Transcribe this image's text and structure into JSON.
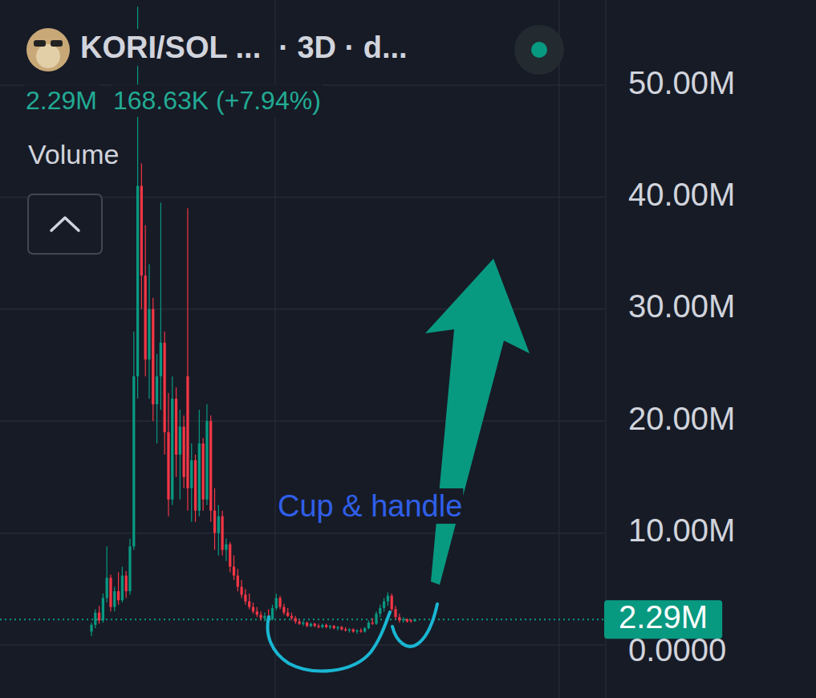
{
  "header": {
    "title": "KORI/SOL ...",
    "interval": "· 3D · d...",
    "price": "2.29M",
    "change": "168.63K (+7.94%)",
    "indicator": "Volume"
  },
  "chart_data": {
    "type": "candlestick",
    "ohlc": [
      [
        1.2,
        2.0,
        0.8,
        1.8
      ],
      [
        1.8,
        3.2,
        1.5,
        2.9
      ],
      [
        2.9,
        3.5,
        1.9,
        2.2
      ],
      [
        2.2,
        4.6,
        2.0,
        4.2
      ],
      [
        4.2,
        8.8,
        3.8,
        6.0
      ],
      [
        6.0,
        6.3,
        3.0,
        3.4
      ],
      [
        3.4,
        5.2,
        3.0,
        4.8
      ],
      [
        4.8,
        6.5,
        3.6,
        4.0
      ],
      [
        4.0,
        7.0,
        3.8,
        6.2
      ],
      [
        6.2,
        6.6,
        4.2,
        4.8
      ],
      [
        4.8,
        9.5,
        4.5,
        8.8
      ],
      [
        8.8,
        28.0,
        8.5,
        24.0
      ],
      [
        24.0,
        57.0,
        22.0,
        41.0
      ],
      [
        41.0,
        43.0,
        30.0,
        33.0
      ],
      [
        33.0,
        37.5,
        24.0,
        25.5
      ],
      [
        25.5,
        34.0,
        22.0,
        30.0
      ],
      [
        30.0,
        31.0,
        20.0,
        21.5
      ],
      [
        21.5,
        26.0,
        18.0,
        24.0
      ],
      [
        24.0,
        39.5,
        21.0,
        27.0
      ],
      [
        27.0,
        28.0,
        17.0,
        19.0
      ],
      [
        19.0,
        22.5,
        11.5,
        13.0
      ],
      [
        13.0,
        24.0,
        12.5,
        22.0
      ],
      [
        22.0,
        23.0,
        15.0,
        17.0
      ],
      [
        17.0,
        21.0,
        13.0,
        19.5
      ],
      [
        19.5,
        20.5,
        14.0,
        15.0
      ],
      [
        24.0,
        39.0,
        12.0,
        14.0
      ],
      [
        14.0,
        18.0,
        11.0,
        16.5
      ],
      [
        16.5,
        17.0,
        11.0,
        12.0
      ],
      [
        12.0,
        21.0,
        11.5,
        18.0
      ],
      [
        18.0,
        18.5,
        12.0,
        13.0
      ],
      [
        13.0,
        21.5,
        12.5,
        20.0
      ],
      [
        20.0,
        20.5,
        11.0,
        12.0
      ],
      [
        12.0,
        14.0,
        8.5,
        10.0
      ],
      [
        10.0,
        12.5,
        8.0,
        11.5
      ],
      [
        11.5,
        12.0,
        8.0,
        8.5
      ],
      [
        8.5,
        9.5,
        7.5,
        9.0
      ],
      [
        9.0,
        9.2,
        6.5,
        7.0
      ],
      [
        7.0,
        8.0,
        5.8,
        6.2
      ],
      [
        6.2,
        6.8,
        4.8,
        5.2
      ],
      [
        5.2,
        5.8,
        4.2,
        4.5
      ],
      [
        4.5,
        5.0,
        3.6,
        3.9
      ],
      [
        3.9,
        4.6,
        3.2,
        3.4
      ],
      [
        3.4,
        3.8,
        2.8,
        3.0
      ],
      [
        3.0,
        3.4,
        2.5,
        2.7
      ],
      [
        2.7,
        3.0,
        2.2,
        2.4
      ],
      [
        2.4,
        2.9,
        2.1,
        2.6
      ],
      [
        2.6,
        3.2,
        2.2,
        2.3
      ],
      [
        2.3,
        3.6,
        2.2,
        3.3
      ],
      [
        3.3,
        4.6,
        3.1,
        4.2
      ],
      [
        4.2,
        4.4,
        3.2,
        3.4
      ],
      [
        3.4,
        3.7,
        2.7,
        2.9
      ],
      [
        2.9,
        3.3,
        2.5,
        2.6
      ],
      [
        2.6,
        2.9,
        2.2,
        2.4
      ],
      [
        2.4,
        2.6,
        1.9,
        2.1
      ],
      [
        2.1,
        2.3,
        1.8,
        1.9
      ],
      [
        1.9,
        2.2,
        1.7,
        2.0
      ],
      [
        2.0,
        2.1,
        1.6,
        1.7
      ],
      [
        1.7,
        2.0,
        1.6,
        1.9
      ],
      [
        1.9,
        2.0,
        1.6,
        1.7
      ],
      [
        1.7,
        1.9,
        1.5,
        1.6
      ],
      [
        1.6,
        1.9,
        1.5,
        1.8
      ],
      [
        1.8,
        1.9,
        1.5,
        1.6
      ],
      [
        1.6,
        1.8,
        1.4,
        1.7
      ],
      [
        1.7,
        1.8,
        1.4,
        1.5
      ],
      [
        1.5,
        1.7,
        1.3,
        1.6
      ],
      [
        1.6,
        1.7,
        1.3,
        1.4
      ],
      [
        1.4,
        1.6,
        1.2,
        1.3
      ],
      [
        1.3,
        1.5,
        1.1,
        1.4
      ],
      [
        1.4,
        1.5,
        1.1,
        1.2
      ],
      [
        1.2,
        1.4,
        1.0,
        1.3
      ],
      [
        1.3,
        1.5,
        1.1,
        1.2
      ],
      [
        1.2,
        1.6,
        1.1,
        1.5
      ],
      [
        1.5,
        2.2,
        1.4,
        2.0
      ],
      [
        2.0,
        2.4,
        1.8,
        1.9
      ],
      [
        1.9,
        3.0,
        1.8,
        2.8
      ],
      [
        2.8,
        3.6,
        2.5,
        3.3
      ],
      [
        3.3,
        4.2,
        3.0,
        3.9
      ],
      [
        3.9,
        4.7,
        3.5,
        4.4
      ],
      [
        4.4,
        4.6,
        3.0,
        3.2
      ],
      [
        3.2,
        3.5,
        2.3,
        2.5
      ],
      [
        2.5,
        2.8,
        2.0,
        2.2
      ],
      [
        2.2,
        2.5,
        2.0,
        2.3
      ],
      [
        2.3,
        2.4,
        2.0,
        2.1
      ],
      [
        2.2,
        2.3,
        2.0,
        2.12
      ],
      [
        2.12,
        2.35,
        2.1,
        2.29
      ]
    ],
    "ylim": [
      -4.73,
      57.6
    ],
    "yticks": [
      {
        "value": 0,
        "label": "0.0000"
      },
      {
        "value": 10,
        "label": "10.00M"
      },
      {
        "value": 20,
        "label": "20.00M"
      },
      {
        "value": 30,
        "label": "30.00M"
      },
      {
        "value": 40,
        "label": "40.00M"
      },
      {
        "value": 50,
        "label": "50.00M"
      }
    ],
    "grid": true,
    "tick_labels": "y",
    "last_price": {
      "value": 2.29,
      "label": "2.29M"
    },
    "annotations": [
      {
        "text": "Cup & handle"
      }
    ]
  }
}
